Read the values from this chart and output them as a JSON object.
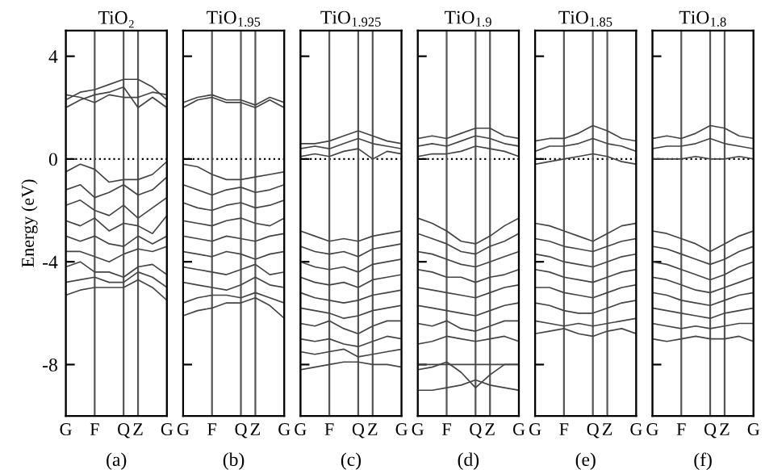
{
  "chart_data": [
    {
      "type": "line",
      "title": "TiO₂",
      "ylabel": "Energy (eV)",
      "annotations": [
        "(a)"
      ],
      "categories": [
        "G",
        null,
        "F",
        null,
        "Q",
        "Z",
        null,
        "G"
      ],
      "ylim": [
        -10,
        5
      ],
      "yticks": [
        -8,
        -4,
        0,
        4
      ],
      "grid": "x",
      "ref_lines": [
        {
          "axis": "y",
          "value": 0,
          "line_style": "dotted",
          "color": "#000000"
        }
      ],
      "series": [
        {
          "color": "#444444",
          "values": [
            2.3,
            2.6,
            2.7,
            2.9,
            3.1,
            3.1,
            2.8,
            2.3
          ]
        },
        {
          "color": "#444444",
          "values": [
            2.0,
            2.3,
            2.5,
            2.6,
            2.8,
            2.0,
            2.4,
            2.0
          ]
        },
        {
          "color": "#444444",
          "values": [
            2.5,
            2.4,
            2.2,
            2.5,
            2.4,
            2.4,
            2.6,
            2.5
          ]
        },
        {
          "color": "#444444",
          "values": [
            -0.5,
            -0.2,
            -0.4,
            -0.9,
            -0.8,
            -0.8,
            -0.6,
            -0.1
          ]
        },
        {
          "color": "#444444",
          "values": [
            -1.2,
            -1.0,
            -1.5,
            -1.3,
            -1.0,
            -1.4,
            -1.2,
            -0.7
          ]
        },
        {
          "color": "#444444",
          "values": [
            -1.8,
            -1.6,
            -2.0,
            -2.2,
            -1.8,
            -2.3,
            -1.9,
            -1.5
          ]
        },
        {
          "color": "#444444",
          "values": [
            -2.4,
            -2.6,
            -2.3,
            -2.8,
            -2.5,
            -2.6,
            -2.9,
            -2.2
          ]
        },
        {
          "color": "#444444",
          "values": [
            -3.0,
            -3.2,
            -3.0,
            -3.3,
            -3.4,
            -3.0,
            -3.3,
            -3.0
          ]
        },
        {
          "color": "#444444",
          "values": [
            -3.6,
            -3.6,
            -3.8,
            -4.0,
            -3.7,
            -3.5,
            -3.6,
            -3.4
          ]
        },
        {
          "color": "#444444",
          "values": [
            -4.2,
            -4.0,
            -4.4,
            -4.4,
            -4.6,
            -4.2,
            -4.1,
            -4.5
          ]
        },
        {
          "color": "#444444",
          "values": [
            -4.8,
            -4.7,
            -4.6,
            -4.8,
            -4.8,
            -4.4,
            -4.6,
            -5.0
          ]
        },
        {
          "color": "#444444",
          "values": [
            -5.3,
            -5.1,
            -5.0,
            -5.0,
            -5.0,
            -4.7,
            -5.0,
            -5.5
          ]
        }
      ]
    },
    {
      "type": "line",
      "title": "TiO$_{1.95}$",
      "annotations": [
        "(b)"
      ],
      "categories": [
        "G",
        null,
        "F",
        null,
        "Q",
        "Z",
        null,
        "G"
      ],
      "ylim": [
        -10,
        5
      ],
      "yticks": [
        {
          "value": -8,
          "label": null
        },
        {
          "value": -4,
          "label": null
        },
        {
          "value": 0,
          "label": null
        },
        {
          "value": 4,
          "label": null
        }
      ],
      "tick_labels": "x",
      "grid": "x",
      "ref_lines": [
        {
          "axis": "y",
          "value": 0,
          "line_style": "dotted",
          "color": "#000000"
        }
      ],
      "series": [
        {
          "color": "#444444",
          "values": [
            2.2,
            2.4,
            2.5,
            2.3,
            2.3,
            2.1,
            2.4,
            2.2
          ]
        },
        {
          "color": "#444444",
          "values": [
            2.0,
            2.3,
            2.4,
            2.2,
            2.2,
            2.0,
            2.3,
            2.0
          ]
        },
        {
          "color": "#444444",
          "values": [
            -0.2,
            -0.3,
            -0.6,
            -0.8,
            -0.8,
            -0.7,
            -0.6,
            -0.5
          ]
        },
        {
          "color": "#444444",
          "values": [
            -1.0,
            -1.2,
            -1.4,
            -1.2,
            -1.1,
            -1.3,
            -1.2,
            -1.0
          ]
        },
        {
          "color": "#444444",
          "values": [
            -1.7,
            -1.9,
            -2.0,
            -1.8,
            -1.7,
            -1.9,
            -1.8,
            -1.6
          ]
        },
        {
          "color": "#444444",
          "values": [
            -2.4,
            -2.5,
            -2.6,
            -2.4,
            -2.3,
            -2.5,
            -2.6,
            -2.3
          ]
        },
        {
          "color": "#444444",
          "values": [
            -3.0,
            -3.1,
            -3.2,
            -3.0,
            -3.1,
            -3.2,
            -3.0,
            -2.9
          ]
        },
        {
          "color": "#444444",
          "values": [
            -3.6,
            -3.7,
            -3.8,
            -3.6,
            -3.7,
            -3.9,
            -3.7,
            -3.6
          ]
        },
        {
          "color": "#444444",
          "values": [
            -4.2,
            -4.3,
            -4.4,
            -4.5,
            -4.3,
            -4.1,
            -4.5,
            -4.4
          ]
        },
        {
          "color": "#444444",
          "values": [
            -4.8,
            -4.9,
            -5.0,
            -5.1,
            -4.9,
            -4.6,
            -4.9,
            -5.0
          ]
        },
        {
          "color": "#444444",
          "values": [
            -5.6,
            -5.4,
            -5.3,
            -5.3,
            -5.4,
            -5.2,
            -5.4,
            -5.6
          ]
        },
        {
          "color": "#444444",
          "values": [
            -6.1,
            -5.9,
            -5.8,
            -5.6,
            -5.6,
            -5.4,
            -5.7,
            -6.2
          ]
        }
      ]
    },
    {
      "type": "line",
      "title": "TiO$_{1.925}$",
      "annotations": [
        "(c)"
      ],
      "categories": [
        "G",
        null,
        "F",
        null,
        "Q",
        "Z",
        null,
        "G"
      ],
      "ylim": [
        -10,
        5
      ],
      "yticks": [
        {
          "value": -8,
          "label": null
        },
        {
          "value": -4,
          "label": null
        },
        {
          "value": 0,
          "label": null
        },
        {
          "value": 4,
          "label": null
        }
      ],
      "tick_labels": "x",
      "grid": "x",
      "ref_lines": [
        {
          "axis": "y",
          "value": 0,
          "line_style": "dotted",
          "color": "#000000"
        }
      ],
      "series": [
        {
          "color": "#444444",
          "values": [
            0.6,
            0.6,
            0.7,
            0.9,
            1.1,
            0.9,
            0.7,
            0.6
          ]
        },
        {
          "color": "#444444",
          "values": [
            0.4,
            0.5,
            0.4,
            0.6,
            0.8,
            0.6,
            0.5,
            0.4
          ]
        },
        {
          "color": "#444444",
          "values": [
            0.1,
            0.2,
            0.1,
            0.3,
            0.4,
            0.0,
            0.3,
            0.2
          ]
        },
        {
          "color": "#444444",
          "values": [
            -2.8,
            -3.0,
            -3.2,
            -3.1,
            -3.2,
            -3.0,
            -2.9,
            -2.8
          ]
        },
        {
          "color": "#444444",
          "values": [
            -3.4,
            -3.6,
            -3.7,
            -3.6,
            -3.8,
            -3.5,
            -3.4,
            -3.3
          ]
        },
        {
          "color": "#444444",
          "values": [
            -4.0,
            -4.2,
            -4.3,
            -4.2,
            -4.4,
            -4.1,
            -4.0,
            -3.9
          ]
        },
        {
          "color": "#444444",
          "values": [
            -4.6,
            -4.8,
            -4.9,
            -4.8,
            -5.0,
            -4.7,
            -4.6,
            -4.5
          ]
        },
        {
          "color": "#444444",
          "values": [
            -5.2,
            -5.4,
            -5.5,
            -5.6,
            -5.5,
            -5.3,
            -5.2,
            -5.1
          ]
        },
        {
          "color": "#444444",
          "values": [
            -5.8,
            -5.9,
            -6.0,
            -6.2,
            -6.1,
            -5.9,
            -5.8,
            -5.7
          ]
        },
        {
          "color": "#444444",
          "values": [
            -6.4,
            -6.5,
            -6.3,
            -6.6,
            -6.8,
            -6.5,
            -6.3,
            -6.3
          ]
        },
        {
          "color": "#444444",
          "values": [
            -7.0,
            -7.1,
            -7.0,
            -7.2,
            -7.3,
            -7.1,
            -6.9,
            -7.0
          ]
        },
        {
          "color": "#444444",
          "values": [
            -7.5,
            -7.6,
            -7.5,
            -7.4,
            -7.7,
            -7.6,
            -7.5,
            -7.4
          ]
        },
        {
          "color": "#444444",
          "values": [
            -8.2,
            -8.1,
            -8.0,
            -7.9,
            -7.9,
            -8.0,
            -8.0,
            -8.1
          ]
        }
      ]
    },
    {
      "type": "line",
      "title": "TiO$_{1.9}$",
      "annotations": [
        "(d)"
      ],
      "categories": [
        "G",
        null,
        "F",
        null,
        "Q",
        "Z",
        null,
        "G"
      ],
      "ylim": [
        -10,
        5
      ],
      "yticks": [
        {
          "value": -8,
          "label": null
        },
        {
          "value": -4,
          "label": null
        },
        {
          "value": 0,
          "label": null
        },
        {
          "value": 4,
          "label": null
        }
      ],
      "tick_labels": "x",
      "grid": "x",
      "ref_lines": [
        {
          "axis": "y",
          "value": 0,
          "line_style": "dotted",
          "color": "#000000"
        }
      ],
      "series": [
        {
          "color": "#444444",
          "values": [
            0.8,
            0.9,
            0.8,
            1.0,
            1.2,
            1.2,
            0.9,
            0.8
          ]
        },
        {
          "color": "#444444",
          "values": [
            0.5,
            0.6,
            0.5,
            0.7,
            0.9,
            0.8,
            0.6,
            0.5
          ]
        },
        {
          "color": "#444444",
          "values": [
            0.1,
            0.2,
            0.2,
            0.3,
            0.5,
            0.4,
            0.3,
            0.1
          ]
        },
        {
          "color": "#444444",
          "values": [
            -2.3,
            -2.5,
            -2.8,
            -3.2,
            -3.3,
            -3.0,
            -2.6,
            -2.3
          ]
        },
        {
          "color": "#444444",
          "values": [
            -2.9,
            -3.1,
            -3.3,
            -3.6,
            -3.7,
            -3.4,
            -3.2,
            -2.9
          ]
        },
        {
          "color": "#444444",
          "values": [
            -3.6,
            -3.7,
            -3.9,
            -4.1,
            -4.2,
            -4.0,
            -3.8,
            -3.6
          ]
        },
        {
          "color": "#444444",
          "values": [
            -4.3,
            -4.4,
            -4.6,
            -4.6,
            -4.8,
            -4.6,
            -4.5,
            -4.3
          ]
        },
        {
          "color": "#444444",
          "values": [
            -5.0,
            -5.1,
            -5.2,
            -5.3,
            -5.4,
            -5.2,
            -5.0,
            -4.9
          ]
        },
        {
          "color": "#444444",
          "values": [
            -5.7,
            -5.8,
            -5.9,
            -6.0,
            -6.1,
            -5.9,
            -5.7,
            -5.6
          ]
        },
        {
          "color": "#444444",
          "values": [
            -6.4,
            -6.5,
            -6.3,
            -6.6,
            -6.7,
            -6.5,
            -6.3,
            -6.3
          ]
        },
        {
          "color": "#444444",
          "values": [
            -7.2,
            -7.1,
            -6.9,
            -7.0,
            -7.1,
            -7.0,
            -6.9,
            -7.1
          ]
        },
        {
          "color": "#444444",
          "values": [
            -8.0,
            -8.0,
            -8.0,
            -8.0,
            -8.0,
            -8.0,
            -8.0,
            -8.0
          ]
        },
        {
          "color": "#444444",
          "values": [
            -8.2,
            -8.1,
            -7.9,
            -8.3,
            -8.9,
            -8.4,
            -8.0,
            -8.0
          ]
        },
        {
          "color": "#444444",
          "values": [
            -9.0,
            -9.0,
            -8.9,
            -8.8,
            -8.6,
            -8.8,
            -8.9,
            -9.0
          ]
        }
      ]
    },
    {
      "type": "line",
      "title": "TiO$_{1.85}$",
      "annotations": [
        "(e)"
      ],
      "categories": [
        "G",
        null,
        "F",
        null,
        "Q",
        "Z",
        null,
        "G"
      ],
      "ylim": [
        -10,
        5
      ],
      "yticks": [
        {
          "value": -8,
          "label": null
        },
        {
          "value": -4,
          "label": null
        },
        {
          "value": 0,
          "label": null
        },
        {
          "value": 4,
          "label": null
        }
      ],
      "tick_labels": "x",
      "grid": "x",
      "ref_lines": [
        {
          "axis": "y",
          "value": 0,
          "line_style": "dotted",
          "color": "#000000"
        }
      ],
      "series": [
        {
          "color": "#444444",
          "values": [
            0.7,
            0.8,
            0.8,
            1.0,
            1.3,
            1.1,
            0.8,
            0.7
          ]
        },
        {
          "color": "#444444",
          "values": [
            0.3,
            0.5,
            0.5,
            0.6,
            0.8,
            0.6,
            0.5,
            0.3
          ]
        },
        {
          "color": "#444444",
          "values": [
            -0.2,
            -0.1,
            0.0,
            0.1,
            0.2,
            0.1,
            -0.1,
            -0.2
          ]
        },
        {
          "color": "#444444",
          "values": [
            -2.5,
            -2.6,
            -2.8,
            -3.0,
            -3.2,
            -2.9,
            -2.6,
            -2.5
          ]
        },
        {
          "color": "#444444",
          "values": [
            -3.1,
            -3.2,
            -3.4,
            -3.5,
            -3.6,
            -3.4,
            -3.2,
            -3.1
          ]
        },
        {
          "color": "#444444",
          "values": [
            -3.7,
            -3.8,
            -4.0,
            -4.1,
            -4.2,
            -4.0,
            -3.8,
            -3.7
          ]
        },
        {
          "color": "#444444",
          "values": [
            -4.3,
            -4.4,
            -4.6,
            -4.7,
            -4.8,
            -4.6,
            -4.4,
            -4.3
          ]
        },
        {
          "color": "#444444",
          "values": [
            -5.0,
            -5.0,
            -5.2,
            -5.3,
            -5.4,
            -5.2,
            -5.0,
            -4.9
          ]
        },
        {
          "color": "#444444",
          "values": [
            -5.6,
            -5.7,
            -5.9,
            -6.0,
            -6.0,
            -5.8,
            -5.6,
            -5.5
          ]
        },
        {
          "color": "#444444",
          "values": [
            -6.3,
            -6.4,
            -6.5,
            -6.4,
            -6.5,
            -6.4,
            -6.3,
            -6.2
          ]
        },
        {
          "color": "#444444",
          "values": [
            -6.8,
            -6.7,
            -6.6,
            -6.8,
            -6.9,
            -6.7,
            -6.6,
            -6.8
          ]
        }
      ]
    },
    {
      "type": "line",
      "title": "TiO$_{1.8}$",
      "annotations": [
        "(f)"
      ],
      "categories": [
        "G",
        null,
        "F",
        null,
        "Q",
        "Z",
        null,
        "G"
      ],
      "ylim": [
        -10,
        5
      ],
      "yticks": [
        {
          "value": -8,
          "label": null
        },
        {
          "value": -4,
          "label": null
        },
        {
          "value": 0,
          "label": null
        },
        {
          "value": 4,
          "label": null
        }
      ],
      "tick_labels": "x",
      "grid": "x",
      "ref_lines": [
        {
          "axis": "y",
          "value": 0,
          "line_style": "dotted",
          "color": "#000000"
        }
      ],
      "series": [
        {
          "color": "#444444",
          "values": [
            0.8,
            0.9,
            0.8,
            1.0,
            1.3,
            1.2,
            0.9,
            0.8
          ]
        },
        {
          "color": "#444444",
          "values": [
            0.4,
            0.5,
            0.5,
            0.6,
            0.8,
            0.6,
            0.5,
            0.4
          ]
        },
        {
          "color": "#444444",
          "values": [
            0.0,
            0.0,
            0.0,
            0.1,
            0.0,
            0.0,
            0.1,
            0.0
          ]
        },
        {
          "color": "#444444",
          "values": [
            -2.8,
            -2.9,
            -3.1,
            -3.3,
            -3.6,
            -3.3,
            -3.0,
            -2.8
          ]
        },
        {
          "color": "#444444",
          "values": [
            -3.4,
            -3.5,
            -3.7,
            -3.9,
            -4.1,
            -3.9,
            -3.6,
            -3.4
          ]
        },
        {
          "color": "#444444",
          "values": [
            -4.0,
            -4.1,
            -4.3,
            -4.5,
            -4.7,
            -4.5,
            -4.2,
            -4.0
          ]
        },
        {
          "color": "#444444",
          "values": [
            -4.6,
            -4.7,
            -4.9,
            -5.1,
            -5.2,
            -5.0,
            -4.8,
            -4.6
          ]
        },
        {
          "color": "#444444",
          "values": [
            -5.2,
            -5.3,
            -5.5,
            -5.6,
            -5.7,
            -5.5,
            -5.3,
            -5.2
          ]
        },
        {
          "color": "#444444",
          "values": [
            -5.8,
            -5.9,
            -6.0,
            -6.1,
            -6.2,
            -6.0,
            -5.9,
            -5.8
          ]
        },
        {
          "color": "#444444",
          "values": [
            -6.4,
            -6.5,
            -6.6,
            -6.5,
            -6.6,
            -6.5,
            -6.4,
            -6.4
          ]
        },
        {
          "color": "#444444",
          "values": [
            -7.0,
            -7.1,
            -7.0,
            -6.9,
            -7.0,
            -7.0,
            -6.9,
            -7.1
          ]
        }
      ]
    }
  ]
}
